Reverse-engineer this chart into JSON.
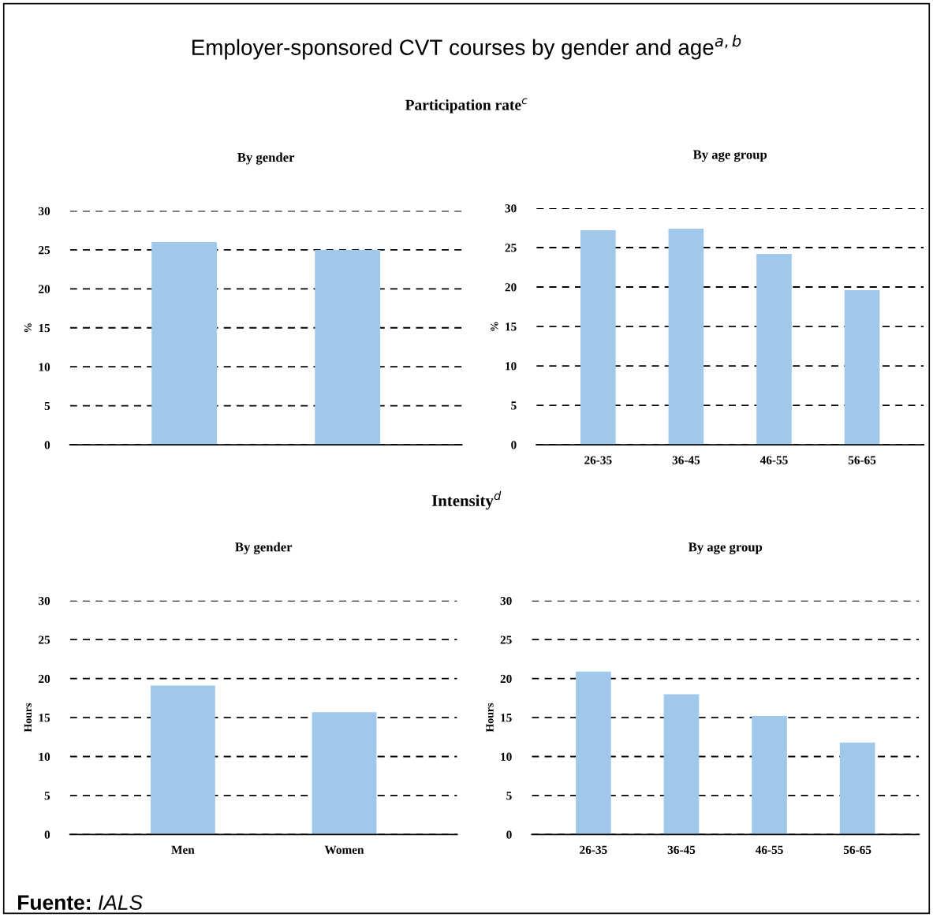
{
  "chart_data": [
    {
      "type": "bar",
      "title": "By gender",
      "ylabel": "%",
      "categories": [
        null,
        null
      ],
      "values": [
        26,
        25
      ],
      "color": "#a0c8eb",
      "ylim": [
        0,
        30
      ],
      "yticks": [
        0,
        5,
        10,
        15,
        20,
        25,
        30
      ],
      "grid": "y",
      "tick_labels": "y",
      "annotations": [
        "Employer-sponsored CVT courses by gender and age$^{a,b}$",
        "Participation rate$^{c}$"
      ]
    },
    {
      "type": "bar",
      "title": "By age group",
      "ylabel": "%",
      "categories": [
        "26-35",
        "36-45",
        "46-55",
        "56-65"
      ],
      "values": [
        27.2,
        27.4,
        24.2,
        19.6
      ],
      "color": "#a0c8eb",
      "ylim": [
        0,
        30
      ],
      "yticks": [
        0,
        5,
        10,
        15,
        20,
        25,
        30
      ],
      "grid": "y"
    },
    {
      "type": "bar",
      "title": "By gender",
      "ylabel": "Hours",
      "categories": [
        "Men",
        "Women"
      ],
      "values": [
        19.1,
        15.7
      ],
      "color": "#a0c8eb",
      "ylim": [
        0,
        30
      ],
      "yticks": [
        0,
        5,
        10,
        15,
        20,
        25,
        30
      ],
      "grid": "y",
      "annotations": [
        "Intensity$^{d}$",
        "Fuente: IALS"
      ]
    },
    {
      "type": "bar",
      "title": "By age group",
      "ylabel": "Hours",
      "categories": [
        "26-35",
        "36-45",
        "46-55",
        "56-65"
      ],
      "values": [
        20.9,
        18.0,
        15.2,
        11.8
      ],
      "color": "#a0c8eb",
      "ylim": [
        0,
        30
      ],
      "yticks": [
        0,
        5,
        10,
        15,
        20,
        25,
        30
      ],
      "grid": "y"
    }
  ]
}
